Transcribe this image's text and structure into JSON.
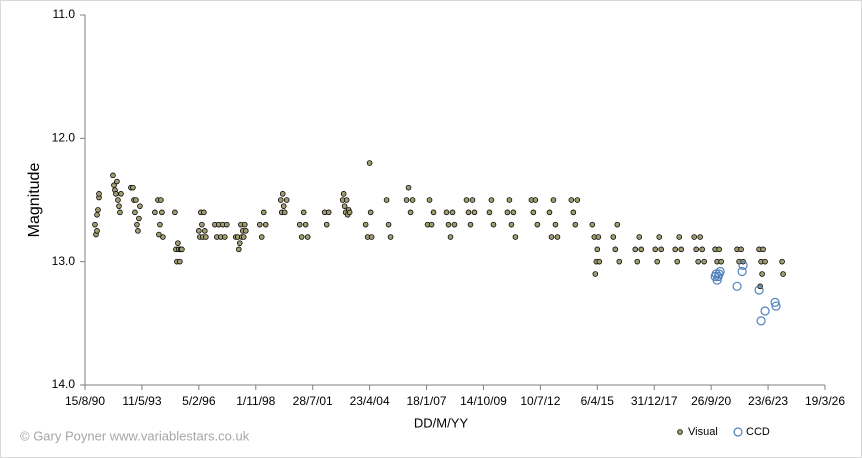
{
  "chart_data": {
    "type": "scatter",
    "x_label": "DD/M/YY",
    "y_label": "Magnitude",
    "credit": "© Gary Poyner  www.variablestars.co.uk",
    "xlim": [
      33100,
      46100
    ],
    "xticks": [
      {
        "value": 33100,
        "label": "15/8/90"
      },
      {
        "value": 34100,
        "label": "11/5/93"
      },
      {
        "value": 35100,
        "label": "5/2/96"
      },
      {
        "value": 36100,
        "label": "1/11/98"
      },
      {
        "value": 37100,
        "label": "28/7/01"
      },
      {
        "value": 38100,
        "label": "23/4/04"
      },
      {
        "value": 39100,
        "label": "18/1/07"
      },
      {
        "value": 40100,
        "label": "14/10/09"
      },
      {
        "value": 41100,
        "label": "10/7/12"
      },
      {
        "value": 42100,
        "label": "6/4/15"
      },
      {
        "value": 43100,
        "label": "31/12/17"
      },
      {
        "value": 44100,
        "label": "26/9/20"
      },
      {
        "value": 45100,
        "label": "23/6/23"
      },
      {
        "value": 46100,
        "label": "19/3/26"
      }
    ],
    "ylim": [
      11,
      14
    ],
    "y_reversed": true,
    "yticks": [
      {
        "value": 11,
        "label": "11.0"
      },
      {
        "value": 12,
        "label": "12.0"
      },
      {
        "value": 13,
        "label": "13.0"
      },
      {
        "value": 14,
        "label": "14.0"
      }
    ],
    "legend_position": "bottom-right",
    "series": [
      {
        "name": "Visual",
        "color": "#a39e72",
        "marker": "filled",
        "x": [
          33275,
          33293,
          33311,
          33328,
          33346,
          33346,
          33311,
          33591,
          33609,
          33626,
          33644,
          33661,
          33679,
          33697,
          33714,
          33732,
          33907,
          33942,
          33960,
          33977,
          34012,
          34030,
          34047,
          34065,
          33995,
          34328,
          34381,
          34416,
          34433,
          34451,
          34468,
          34398,
          34679,
          34697,
          34714,
          34732,
          34749,
          34767,
          34784,
          34802,
          35100,
          35118,
          35135,
          35153,
          35170,
          35188,
          35205,
          35223,
          35381,
          35416,
          35451,
          35486,
          35521,
          35556,
          35591,
          35749,
          35784,
          35802,
          35819,
          35837,
          35854,
          35872,
          35889,
          35907,
          35925,
          36170,
          36205,
          36240,
          36275,
          36539,
          36556,
          36574,
          36591,
          36609,
          36644,
          36872,
          36907,
          36942,
          36977,
          37012,
          37311,
          37346,
          37381,
          37626,
          37644,
          37661,
          37679,
          37697,
          37714,
          37732,
          37749,
          38030,
          38065,
          38100,
          38118,
          38135,
          38398,
          38433,
          38468,
          38749,
          38784,
          38819,
          38854,
          39118,
          39153,
          39188,
          39223,
          39451,
          39486,
          39521,
          39556,
          39591,
          39802,
          39837,
          39872,
          39907,
          39942,
          40205,
          40240,
          40276,
          40521,
          40556,
          40591,
          40626,
          40661,
          40942,
          40977,
          41012,
          41047,
          41260,
          41295,
          41330,
          41365,
          41400,
          41644,
          41679,
          41714,
          41749,
          42012,
          42047,
          42065,
          42083,
          42100,
          42118,
          42135,
          42381,
          42416,
          42451,
          42486,
          42767,
          42802,
          42837,
          42872,
          43118,
          43153,
          43188,
          43223,
          43469,
          43504,
          43539,
          43574,
          43802,
          43837,
          43872,
          43907,
          43942,
          43977,
          44170,
          44205,
          44240,
          44276,
          44556,
          44591,
          44626,
          44661,
          44942,
          44960,
          44977,
          44995,
          45012,
          45047,
          45346,
          45363
        ],
        "values": [
          12.7,
          12.78,
          12.62,
          12.58,
          12.48,
          12.45,
          12.75,
          12.3,
          12.38,
          12.42,
          12.45,
          12.35,
          12.5,
          12.55,
          12.6,
          12.45,
          12.4,
          12.4,
          12.5,
          12.6,
          12.7,
          12.75,
          12.65,
          12.55,
          12.5,
          12.6,
          12.5,
          12.7,
          12.5,
          12.6,
          12.8,
          12.78,
          12.6,
          12.9,
          13.0,
          12.85,
          12.9,
          13.0,
          12.9,
          12.9,
          12.75,
          12.8,
          12.6,
          12.7,
          12.8,
          12.6,
          12.75,
          12.8,
          12.7,
          12.8,
          12.7,
          12.8,
          12.7,
          12.8,
          12.7,
          12.8,
          12.8,
          12.9,
          12.85,
          12.7,
          12.8,
          12.75,
          12.8,
          12.7,
          12.75,
          12.7,
          12.8,
          12.6,
          12.7,
          12.5,
          12.6,
          12.45,
          12.55,
          12.6,
          12.5,
          12.7,
          12.8,
          12.6,
          12.7,
          12.8,
          12.6,
          12.7,
          12.6,
          12.5,
          12.45,
          12.55,
          12.6,
          12.5,
          12.62,
          12.58,
          12.6,
          12.7,
          12.8,
          12.2,
          12.6,
          12.8,
          12.5,
          12.7,
          12.8,
          12.5,
          12.4,
          12.6,
          12.5,
          12.7,
          12.5,
          12.7,
          12.6,
          12.6,
          12.7,
          12.8,
          12.6,
          12.7,
          12.5,
          12.6,
          12.7,
          12.5,
          12.6,
          12.6,
          12.5,
          12.7,
          12.6,
          12.5,
          12.7,
          12.6,
          12.8,
          12.5,
          12.6,
          12.5,
          12.7,
          12.6,
          12.8,
          12.5,
          12.7,
          12.8,
          12.5,
          12.6,
          12.7,
          12.5,
          12.7,
          12.8,
          13.1,
          13.0,
          12.9,
          12.8,
          13.0,
          12.8,
          12.9,
          12.7,
          13.0,
          12.9,
          13.0,
          12.8,
          12.9,
          12.9,
          13.0,
          12.8,
          12.9,
          12.9,
          13.0,
          12.8,
          12.9,
          12.8,
          12.9,
          13.0,
          12.8,
          12.9,
          13.0,
          12.9,
          13.0,
          12.9,
          13.0,
          12.9,
          13.0,
          12.9,
          13.0,
          12.9,
          13.2,
          13.0,
          13.1,
          12.9,
          13.0,
          13.0,
          13.1
        ]
      },
      {
        "name": "CCD",
        "color": "#4f81bd",
        "marker": "open",
        "x": [
          44170,
          44188,
          44205,
          44223,
          44240,
          44258,
          44556,
          44644,
          44661,
          44942,
          44977,
          45047,
          45223,
          45240
        ],
        "values": [
          13.12,
          13.1,
          13.15,
          13.12,
          13.1,
          13.08,
          13.2,
          13.08,
          13.03,
          13.23,
          13.48,
          13.4,
          13.33,
          13.36
        ]
      }
    ]
  }
}
